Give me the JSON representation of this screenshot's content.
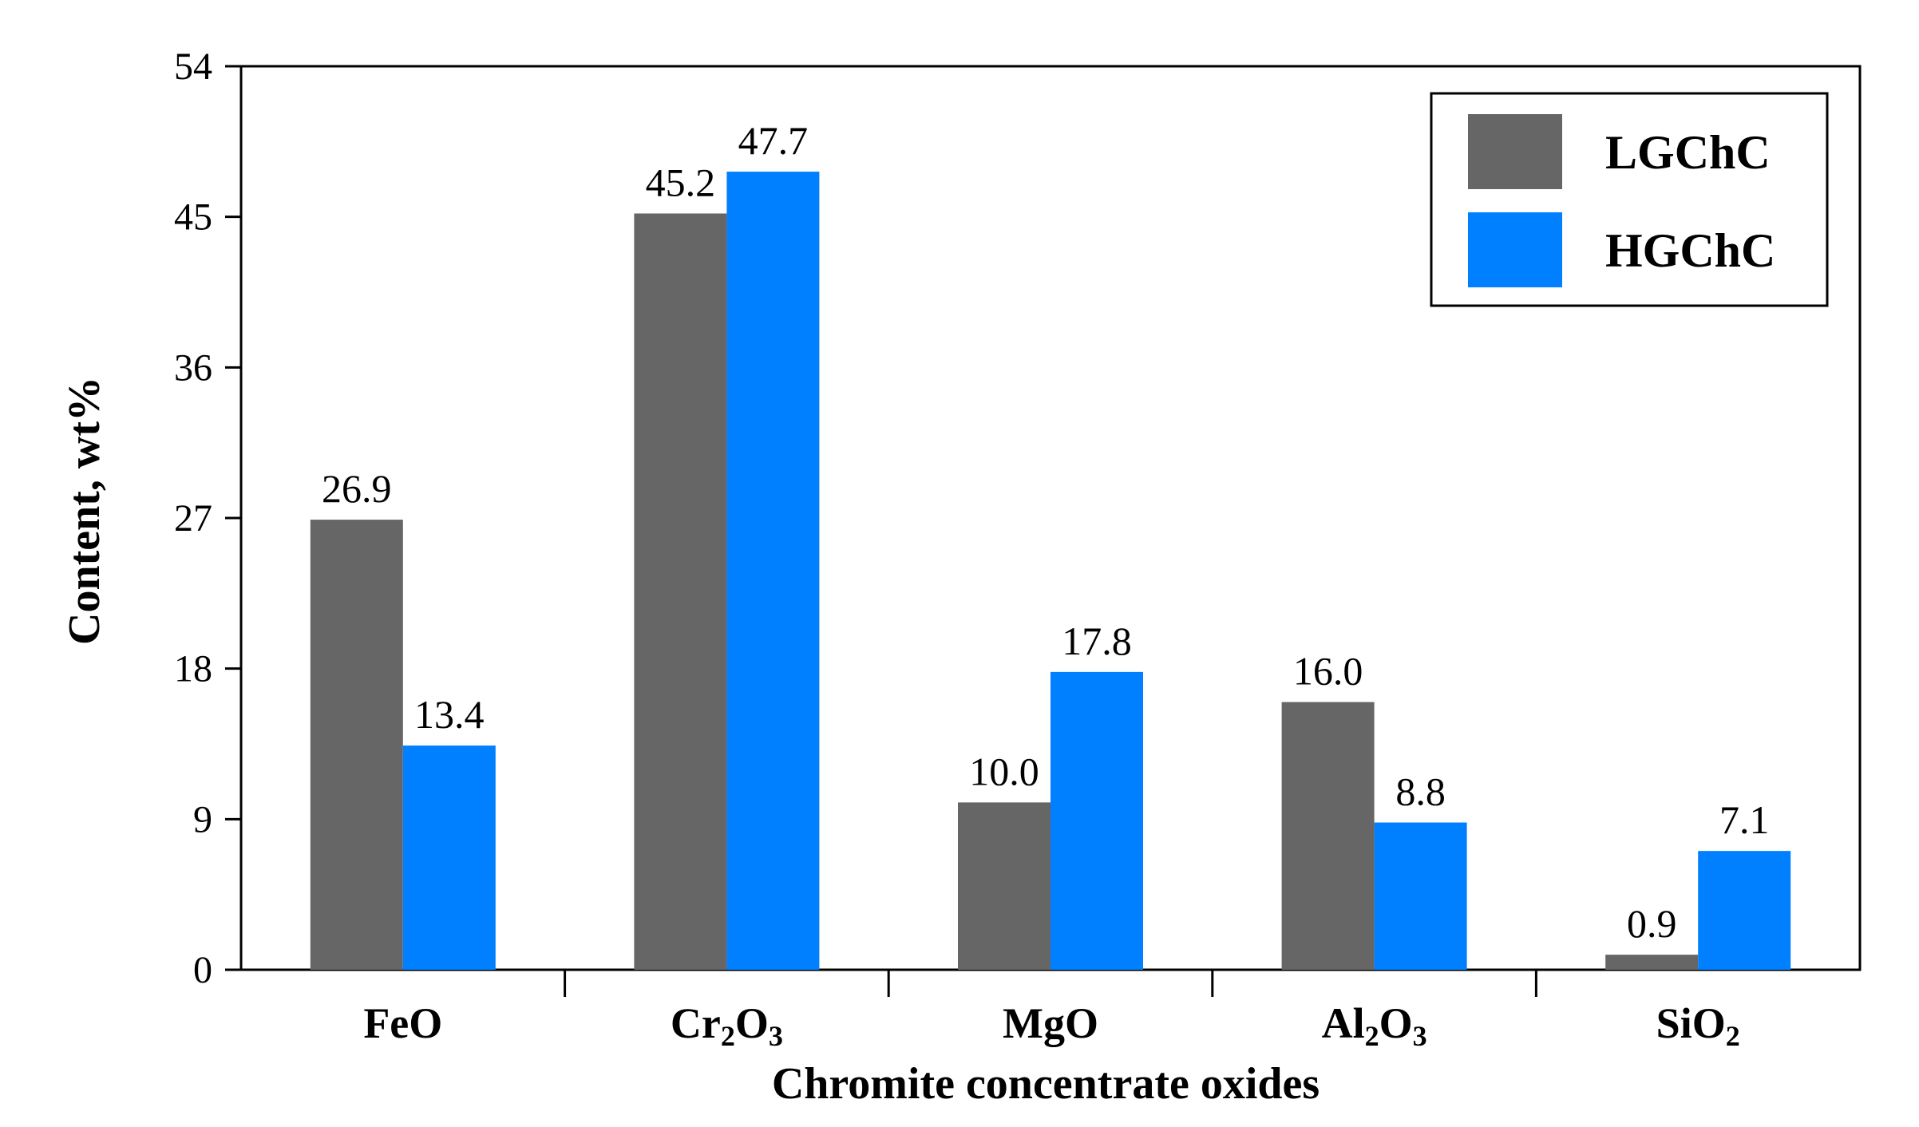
{
  "chart_data": {
    "type": "bar",
    "title": "",
    "xlabel": "Chromite concentrate oxides",
    "ylabel": "Content, wt%",
    "ylim": [
      0,
      54
    ],
    "yticks": [
      0,
      9,
      18,
      27,
      36,
      45,
      54
    ],
    "categories": [
      {
        "base": "FeO",
        "parts": [
          {
            "t": "FeO",
            "sub": false
          }
        ]
      },
      {
        "base": "Cr2O3",
        "parts": [
          {
            "t": "Cr",
            "sub": false
          },
          {
            "t": "2",
            "sub": true
          },
          {
            "t": "O",
            "sub": false
          },
          {
            "t": "3",
            "sub": true
          }
        ]
      },
      {
        "base": "MgO",
        "parts": [
          {
            "t": "MgO",
            "sub": false
          }
        ]
      },
      {
        "base": "Al2O3",
        "parts": [
          {
            "t": "Al",
            "sub": false
          },
          {
            "t": "2",
            "sub": true
          },
          {
            "t": "O",
            "sub": false
          },
          {
            "t": "3",
            "sub": true
          }
        ]
      },
      {
        "base": "SiO2",
        "parts": [
          {
            "t": "SiO",
            "sub": false
          },
          {
            "t": "2",
            "sub": true
          }
        ]
      }
    ],
    "series": [
      {
        "name": "LGChC",
        "color": "#666666",
        "values": [
          26.9,
          45.2,
          10.0,
          16.0,
          0.9
        ],
        "labels": [
          "26.9",
          "45.2",
          "10.0",
          "16.0",
          "0.9"
        ]
      },
      {
        "name": "HGChC",
        "color": "#0080ff",
        "values": [
          13.4,
          47.7,
          17.8,
          8.8,
          7.1
        ],
        "labels": [
          "13.4",
          "47.7",
          "17.8",
          "8.8",
          "7.1"
        ]
      }
    ],
    "legend_position": "top-right",
    "grid": false
  }
}
